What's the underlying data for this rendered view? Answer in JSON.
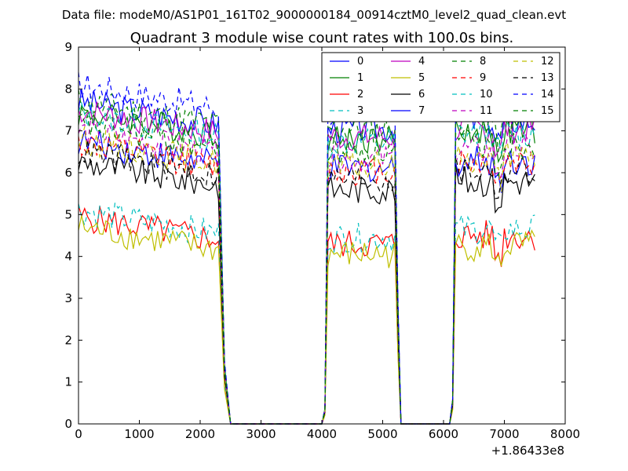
{
  "header_text": "Data file: modeM0/AS1P01_161T02_9000000184_00914cztM0_level2_quad_clean.evt",
  "chart_data": {
    "type": "line",
    "title": "Quadrant 3 module wise count rates with 100.0s bins.",
    "xlabel": "",
    "ylabel": "",
    "x_offset_label": "+1.86433e8",
    "xlim": [
      0,
      8000
    ],
    "ylim": [
      0,
      9
    ],
    "xticks": [
      "0",
      "1000",
      "2000",
      "3000",
      "4000",
      "5000",
      "6000",
      "7000",
      "8000"
    ],
    "yticks": [
      "0",
      "1",
      "2",
      "3",
      "4",
      "5",
      "6",
      "7",
      "8",
      "9"
    ],
    "grid": false,
    "legend_position": "top-right",
    "segments": [
      [
        0,
        2300
      ],
      [
        4100,
        5200
      ],
      [
        6200,
        7500
      ]
    ],
    "series": [
      {
        "name": "0",
        "color": "#0000ff",
        "dash": "solid",
        "level": 7.15
      },
      {
        "name": "1",
        "color": "#008000",
        "dash": "solid",
        "level": 6.9
      },
      {
        "name": "2",
        "color": "#ff0000",
        "dash": "solid",
        "level": 4.4
      },
      {
        "name": "3",
        "color": "#00bfbf",
        "dash": "dashed",
        "level": 4.55
      },
      {
        "name": "4",
        "color": "#bf00bf",
        "dash": "solid",
        "level": 6.95
      },
      {
        "name": "5",
        "color": "#bfbf00",
        "dash": "solid",
        "level": 4.15
      },
      {
        "name": "6",
        "color": "#000000",
        "dash": "solid",
        "level": 5.7
      },
      {
        "name": "7",
        "color": "#0000ff",
        "dash": "solid",
        "level": 6.2
      },
      {
        "name": "8",
        "color": "#008000",
        "dash": "dashed",
        "level": 7.15
      },
      {
        "name": "9",
        "color": "#ff0000",
        "dash": "dashed",
        "level": 6.15
      },
      {
        "name": "10",
        "color": "#00bfbf",
        "dash": "dashed",
        "level": 6.85
      },
      {
        "name": "11",
        "color": "#bf00bf",
        "dash": "dashed",
        "level": 6.45
      },
      {
        "name": "12",
        "color": "#bfbf00",
        "dash": "dashed",
        "level": 6.25
      },
      {
        "name": "13",
        "color": "#000000",
        "dash": "dashed",
        "level": 5.95
      },
      {
        "name": "14",
        "color": "#0000ff",
        "dash": "dashed",
        "level": 7.55
      },
      {
        "name": "15",
        "color": "#008000",
        "dash": "dashed",
        "level": 6.6
      }
    ]
  }
}
